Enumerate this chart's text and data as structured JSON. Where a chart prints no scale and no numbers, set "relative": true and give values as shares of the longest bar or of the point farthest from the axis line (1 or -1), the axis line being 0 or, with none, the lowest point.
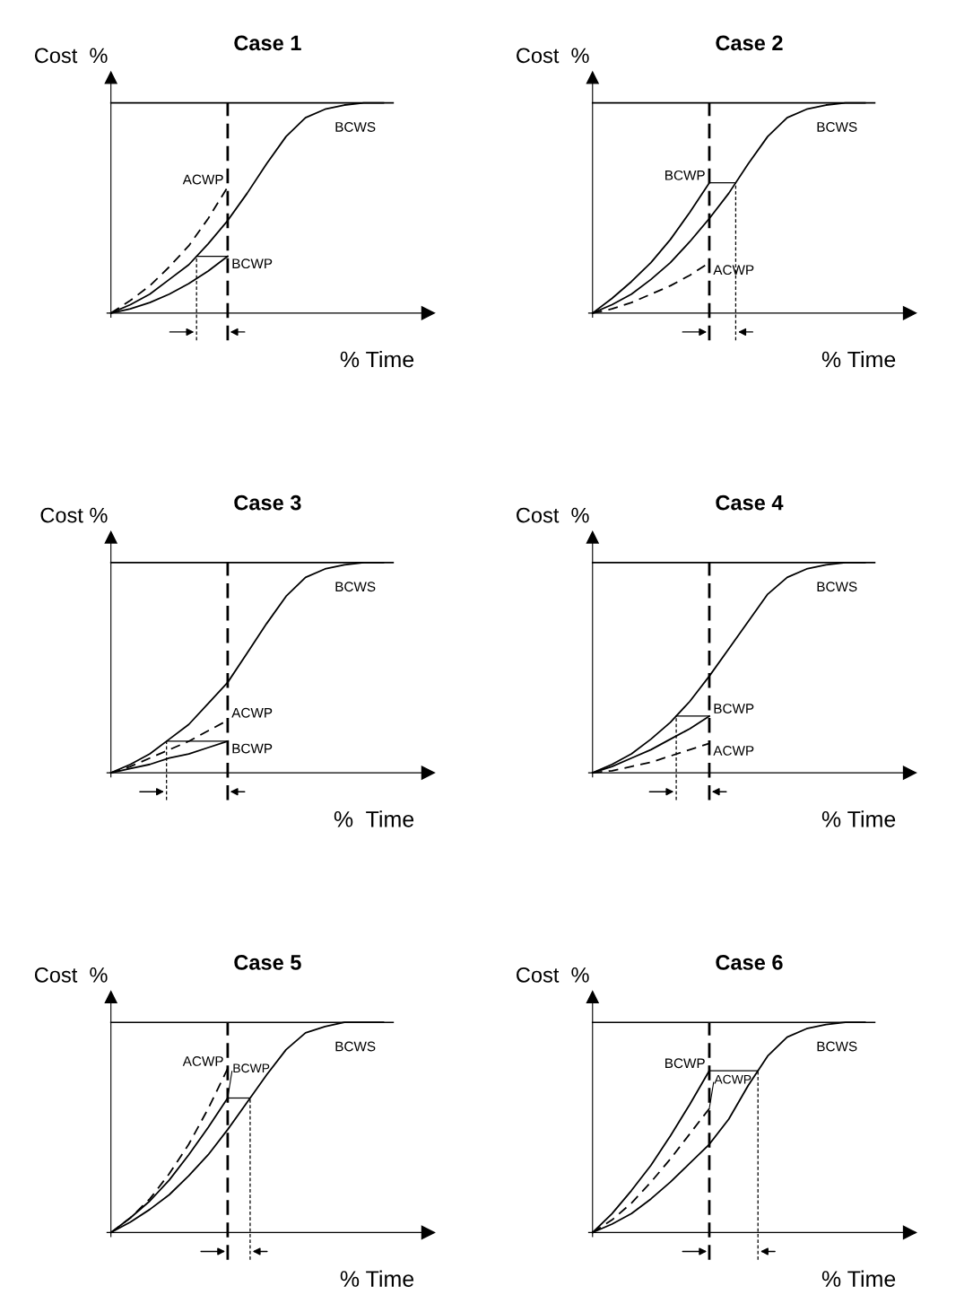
{
  "chart_data": [
    {
      "type": "line",
      "title": "Case 1",
      "xlabel": "% Time",
      "ylabel": "Cost  %",
      "relative": true,
      "marker": "none",
      "categories": [
        null,
        null,
        null,
        null,
        null,
        null,
        null,
        null,
        null,
        null,
        null,
        null,
        null,
        null,
        null
      ],
      "series": [
        {
          "name": "BCWS",
          "color": "#000000",
          "line_style": "solid",
          "values": [
            0,
            0.04,
            0.09,
            0.16,
            0.23,
            0.33,
            0.44,
            0.57,
            0.71,
            0.84,
            0.93,
            0.97,
            0.99,
            1,
            1
          ]
        },
        {
          "name": "ACWP",
          "color": "#000000",
          "line_style": "dashed",
          "values": [
            0,
            0.06,
            0.13,
            0.22,
            0.32,
            0.45,
            0.6,
            null,
            null,
            null,
            null,
            null,
            null,
            null,
            null
          ]
        },
        {
          "name": "BCWP",
          "color": "#000000",
          "line_style": "solid",
          "values": [
            0,
            0.02,
            0.05,
            0.09,
            0.14,
            0.2,
            0.27,
            null,
            null,
            null,
            null,
            null,
            null,
            null,
            null
          ]
        }
      ],
      "ref_lines": [
        {
          "axis": "y",
          "value": 1,
          "color": "#000000",
          "line_style": "solid"
        }
      ]
    },
    {
      "type": "line",
      "title": "Case 2",
      "xlabel": "% Time",
      "ylabel": "Cost  %",
      "relative": true,
      "marker": "none",
      "categories": [
        null,
        null,
        null,
        null,
        null,
        null,
        null,
        null,
        null,
        null,
        null,
        null,
        null,
        null,
        null
      ],
      "series": [
        {
          "name": "BCWS",
          "color": "#000000",
          "line_style": "solid",
          "values": [
            0,
            0.04,
            0.09,
            0.16,
            0.24,
            0.34,
            0.45,
            0.57,
            0.71,
            0.84,
            0.93,
            0.97,
            0.99,
            1,
            1
          ]
        },
        {
          "name": "BCWP",
          "color": "#000000",
          "line_style": "solid",
          "values": [
            0,
            0.07,
            0.15,
            0.24,
            0.35,
            0.48,
            0.62,
            null,
            null,
            null,
            null,
            null,
            null,
            null,
            null
          ]
        },
        {
          "name": "ACWP",
          "color": "#000000",
          "line_style": "dashed",
          "values": [
            0,
            0.02,
            0.05,
            0.09,
            0.13,
            0.18,
            0.24,
            null,
            null,
            null,
            null,
            null,
            null,
            null,
            null
          ]
        }
      ],
      "ref_lines": [
        {
          "axis": "y",
          "value": 1,
          "color": "#000000",
          "line_style": "solid"
        }
      ]
    },
    {
      "type": "line",
      "title": "Case 3",
      "xlabel": "%  Time",
      "ylabel": "Cost %",
      "relative": true,
      "marker": "none",
      "categories": [
        null,
        null,
        null,
        null,
        null,
        null,
        null,
        null,
        null,
        null,
        null,
        null,
        null,
        null,
        null
      ],
      "series": [
        {
          "name": "BCWS",
          "color": "#000000",
          "line_style": "solid",
          "values": [
            0,
            0.04,
            0.09,
            0.16,
            0.23,
            0.33,
            0.43,
            0.57,
            0.71,
            0.84,
            0.93,
            0.97,
            0.99,
            1,
            1
          ]
        },
        {
          "name": "ACWP",
          "color": "#000000",
          "line_style": "dashed",
          "values": [
            0,
            0.03,
            0.07,
            0.11,
            0.15,
            0.2,
            0.25,
            null,
            null,
            null,
            null,
            null,
            null,
            null,
            null
          ]
        },
        {
          "name": "BCWP",
          "color": "#000000",
          "line_style": "solid",
          "values": [
            0,
            0.02,
            0.04,
            0.07,
            0.09,
            0.12,
            0.15,
            null,
            null,
            null,
            null,
            null,
            null,
            null,
            null
          ]
        }
      ],
      "ref_lines": [
        {
          "axis": "y",
          "value": 1,
          "color": "#000000",
          "line_style": "solid"
        }
      ]
    },
    {
      "type": "line",
      "title": "Case 4",
      "xlabel": "% Time",
      "ylabel": "Cost  %",
      "relative": true,
      "marker": "none",
      "categories": [
        null,
        null,
        null,
        null,
        null,
        null,
        null,
        null,
        null,
        null,
        null,
        null,
        null,
        null,
        null
      ],
      "series": [
        {
          "name": "BCWS",
          "color": "#000000",
          "line_style": "solid",
          "values": [
            0,
            0.04,
            0.09,
            0.16,
            0.24,
            0.34,
            0.46,
            0.59,
            0.72,
            0.85,
            0.93,
            0.97,
            0.99,
            1,
            1
          ]
        },
        {
          "name": "BCWP",
          "color": "#000000",
          "line_style": "solid",
          "values": [
            0,
            0.03,
            0.07,
            0.11,
            0.16,
            0.21,
            0.27,
            null,
            null,
            null,
            null,
            null,
            null,
            null,
            null
          ]
        },
        {
          "name": "ACWP",
          "color": "#000000",
          "line_style": "dashed",
          "values": [
            0,
            0.01,
            0.03,
            0.05,
            0.08,
            0.11,
            0.14,
            null,
            null,
            null,
            null,
            null,
            null,
            null,
            null
          ]
        }
      ],
      "ref_lines": [
        {
          "axis": "y",
          "value": 1,
          "color": "#000000",
          "line_style": "solid"
        }
      ]
    },
    {
      "type": "line",
      "title": "Case 5",
      "xlabel": "% Time",
      "ylabel": "Cost  %",
      "relative": true,
      "marker": "none",
      "categories": [
        null,
        null,
        null,
        null,
        null,
        null,
        null,
        null,
        null,
        null,
        null,
        null,
        null,
        null,
        null
      ],
      "series": [
        {
          "name": "BCWS",
          "color": "#000000",
          "line_style": "solid",
          "values": [
            0,
            0.05,
            0.11,
            0.18,
            0.27,
            0.37,
            0.49,
            0.62,
            0.75,
            0.87,
            0.95,
            0.98,
            1,
            1,
            1
          ]
        },
        {
          "name": "ACWP",
          "color": "#000000",
          "line_style": "dashed",
          "values": [
            0,
            0.07,
            0.16,
            0.28,
            0.42,
            0.59,
            0.78,
            null,
            null,
            null,
            null,
            null,
            null,
            null,
            null
          ]
        },
        {
          "name": "BCWP",
          "color": "#000000",
          "line_style": "solid",
          "values": [
            0,
            0.07,
            0.15,
            0.25,
            0.37,
            0.5,
            0.64,
            null,
            null,
            null,
            null,
            null,
            null,
            null,
            null
          ]
        }
      ],
      "ref_lines": [
        {
          "axis": "y",
          "value": 1,
          "color": "#000000",
          "line_style": "solid"
        }
      ]
    },
    {
      "type": "line",
      "title": "Case 6",
      "xlabel": "% Time",
      "ylabel": "Cost  %",
      "relative": true,
      "marker": "none",
      "categories": [
        null,
        null,
        null,
        null,
        null,
        null,
        null,
        null,
        null,
        null,
        null,
        null,
        null,
        null,
        null
      ],
      "series": [
        {
          "name": "BCWS",
          "color": "#000000",
          "line_style": "solid",
          "values": [
            0,
            0.04,
            0.09,
            0.16,
            0.24,
            0.33,
            0.42,
            0.54,
            0.7,
            0.84,
            0.93,
            0.97,
            0.99,
            1,
            1
          ]
        },
        {
          "name": "BCWP",
          "color": "#000000",
          "line_style": "solid",
          "values": [
            0,
            0.09,
            0.2,
            0.32,
            0.46,
            0.61,
            0.77,
            null,
            null,
            null,
            null,
            null,
            null,
            null,
            null
          ]
        },
        {
          "name": "ACWP",
          "color": "#000000",
          "line_style": "dashed",
          "values": [
            0,
            0.06,
            0.14,
            0.24,
            0.35,
            0.47,
            0.59,
            null,
            null,
            null,
            null,
            null,
            null,
            null,
            null
          ]
        }
      ],
      "ref_lines": [
        {
          "axis": "y",
          "value": 1,
          "color": "#000000",
          "line_style": "solid"
        }
      ]
    }
  ]
}
